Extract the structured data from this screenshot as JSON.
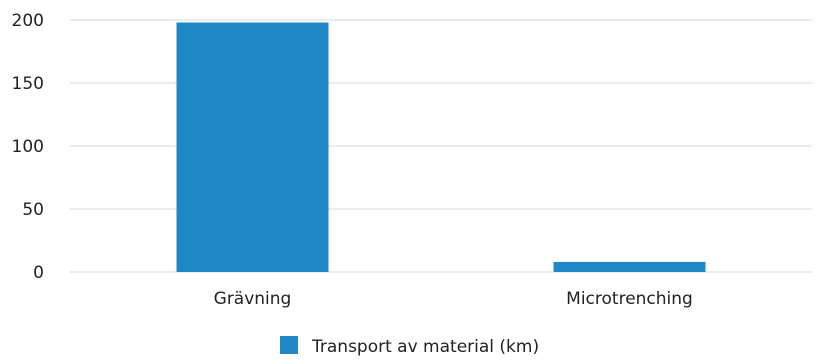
{
  "chart_data": {
    "type": "bar",
    "categories": [
      "Grävning",
      "Microtrenching"
    ],
    "series": [
      {
        "name": "Transport av material (km)",
        "values": [
          198,
          8
        ]
      }
    ],
    "ylim": [
      0,
      200
    ],
    "yticks": [
      0,
      50,
      100,
      150,
      200
    ],
    "grid": true,
    "legend_position": "bottom",
    "colors": {
      "bar": "#1f87c5",
      "grid": "#d9d9d9"
    }
  }
}
